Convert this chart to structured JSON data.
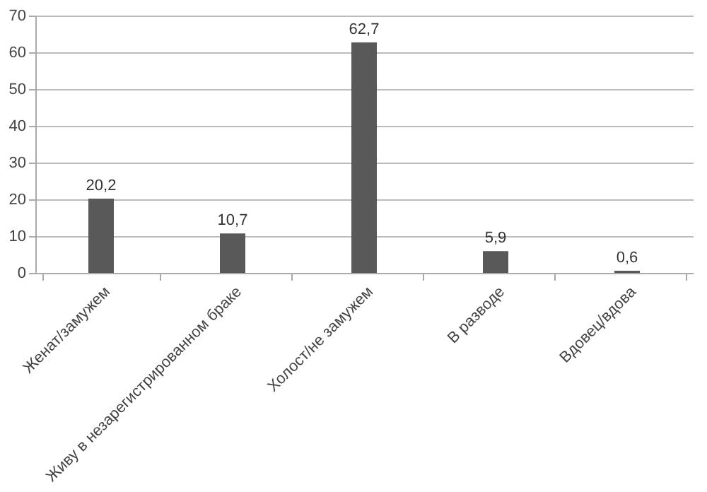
{
  "chart_data": {
    "type": "bar",
    "categories": [
      "Женат/замужем",
      "Живу в незарегистрированном браке",
      "Холост/не замужем",
      "В разводе",
      "Вдовец/вдова"
    ],
    "values": [
      20.2,
      10.7,
      62.7,
      5.9,
      0.6
    ],
    "value_labels": [
      "20,2",
      "10,7",
      "62,7",
      "5,9",
      "0,6"
    ],
    "color": "#595959",
    "ylim": [
      0,
      70
    ],
    "yticks": [
      0,
      10,
      20,
      30,
      40,
      50,
      60,
      70
    ],
    "grid": "y"
  }
}
